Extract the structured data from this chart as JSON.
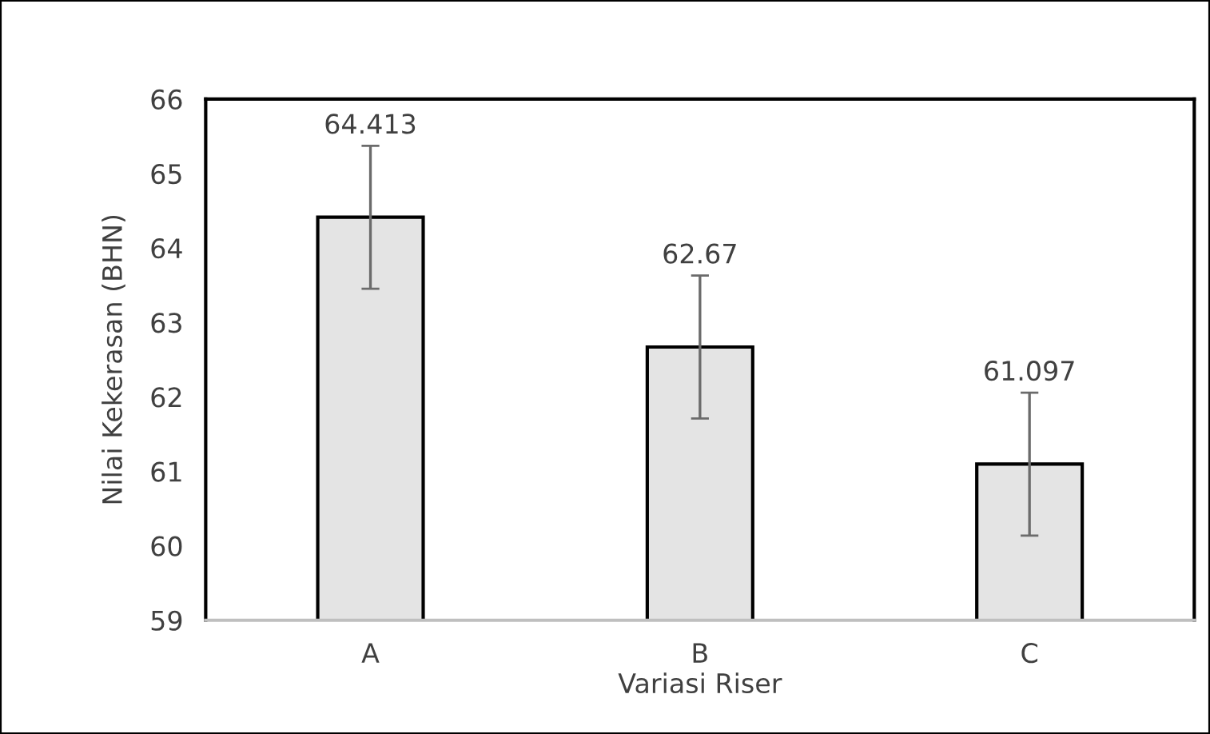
{
  "chart_data": {
    "type": "bar",
    "xlabel": "Variasi Riser",
    "ylabel": "Nilai Kekerasan (BHN)",
    "categories": [
      "A",
      "B",
      "C"
    ],
    "values": [
      64.413,
      62.67,
      61.097
    ],
    "errors": [
      0.96,
      0.96,
      0.96
    ],
    "color": "#e4e4e4",
    "ylim": [
      59,
      66
    ],
    "yticks": [
      59,
      60,
      61,
      62,
      63,
      64,
      65,
      66
    ],
    "value_labels": [
      "64.413",
      "62.67",
      "61.097"
    ],
    "grid": false,
    "legend": false
  }
}
